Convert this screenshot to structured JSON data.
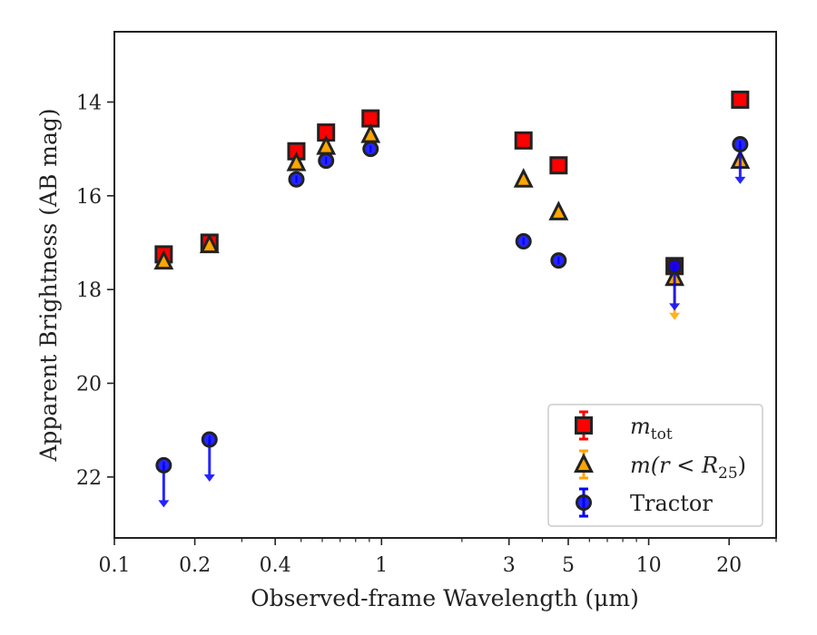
{
  "chart_data": {
    "type": "scatter",
    "xlabel": "Observed-frame Wavelength (μm)",
    "ylabel": "Apparent Brightness (AB mag)",
    "xscale": "log",
    "xlim": [
      0.1,
      30
    ],
    "ylim": [
      23.3,
      12.5
    ],
    "y_inverted": true,
    "grid": false,
    "legend_position": "bottom-right",
    "x_ticks": [
      {
        "value": 0.1,
        "label": "0.1"
      },
      {
        "value": 0.2,
        "label": "0.2"
      },
      {
        "value": 0.4,
        "label": "0.4"
      },
      {
        "value": 1,
        "label": "1"
      },
      {
        "value": 3,
        "label": "3"
      },
      {
        "value": 5,
        "label": "5"
      },
      {
        "value": 10,
        "label": "10"
      },
      {
        "value": 20,
        "label": "20"
      }
    ],
    "x_minor_ticks": [
      0.3,
      0.5,
      0.6,
      0.7,
      0.8,
      0.9,
      2,
      4,
      6,
      7,
      8,
      9,
      30
    ],
    "y_ticks": [
      {
        "value": 14,
        "label": "14"
      },
      {
        "value": 16,
        "label": "16"
      },
      {
        "value": 18,
        "label": "18"
      },
      {
        "value": 20,
        "label": "20"
      },
      {
        "value": 22,
        "label": "22"
      }
    ],
    "series": [
      {
        "name": "m_tot",
        "legend_label": "m",
        "legend_sub": "tot",
        "marker": "square",
        "color": "#ff0000",
        "edge": "#222222",
        "errcolor": "#ff0000",
        "points": [
          {
            "x": 0.153,
            "y": 17.25
          },
          {
            "x": 0.227,
            "y": 17.0
          },
          {
            "x": 0.48,
            "y": 15.05
          },
          {
            "x": 0.62,
            "y": 14.65
          },
          {
            "x": 0.91,
            "y": 14.35
          },
          {
            "x": 3.4,
            "y": 14.82
          },
          {
            "x": 4.6,
            "y": 15.35
          },
          {
            "x": 12.5,
            "y": 17.5
          },
          {
            "x": 22.0,
            "y": 13.95
          }
        ]
      },
      {
        "name": "m(r < R25)",
        "legend_label": "m(r < R",
        "legend_sub": "25",
        "legend_suffix": ")",
        "marker": "triangle",
        "color": "#ffa500",
        "edge": "#222222",
        "errcolor": "#ffa500",
        "points": [
          {
            "x": 0.153,
            "y": 17.4
          },
          {
            "x": 0.227,
            "y": 17.05
          },
          {
            "x": 0.48,
            "y": 15.3
          },
          {
            "x": 0.62,
            "y": 14.95
          },
          {
            "x": 0.91,
            "y": 14.7
          },
          {
            "x": 3.4,
            "y": 15.65
          },
          {
            "x": 4.6,
            "y": 16.35
          },
          {
            "x": 12.5,
            "y": 17.75,
            "upper_limit": true,
            "arrow_to": 18.65
          },
          {
            "x": 22.0,
            "y": 15.25
          }
        ]
      },
      {
        "name": "Tractor",
        "legend_label": "Tractor",
        "marker": "circle",
        "color": "#0000ff",
        "edge": "#222222",
        "errcolor": "#0000ff",
        "points": [
          {
            "x": 0.153,
            "y": 21.75,
            "upper_limit": true,
            "arrow_to": 22.65
          },
          {
            "x": 0.227,
            "y": 21.2,
            "upper_limit": true,
            "arrow_to": 22.1
          },
          {
            "x": 0.48,
            "y": 15.65
          },
          {
            "x": 0.62,
            "y": 15.25
          },
          {
            "x": 0.91,
            "y": 15.0
          },
          {
            "x": 3.4,
            "y": 16.97
          },
          {
            "x": 4.6,
            "y": 17.38
          },
          {
            "x": 12.5,
            "y": 17.5,
            "upper_limit": true,
            "arrow_to": 18.45
          },
          {
            "x": 22.0,
            "y": 14.9,
            "upper_limit": true,
            "arrow_to": 15.75
          }
        ]
      }
    ]
  }
}
